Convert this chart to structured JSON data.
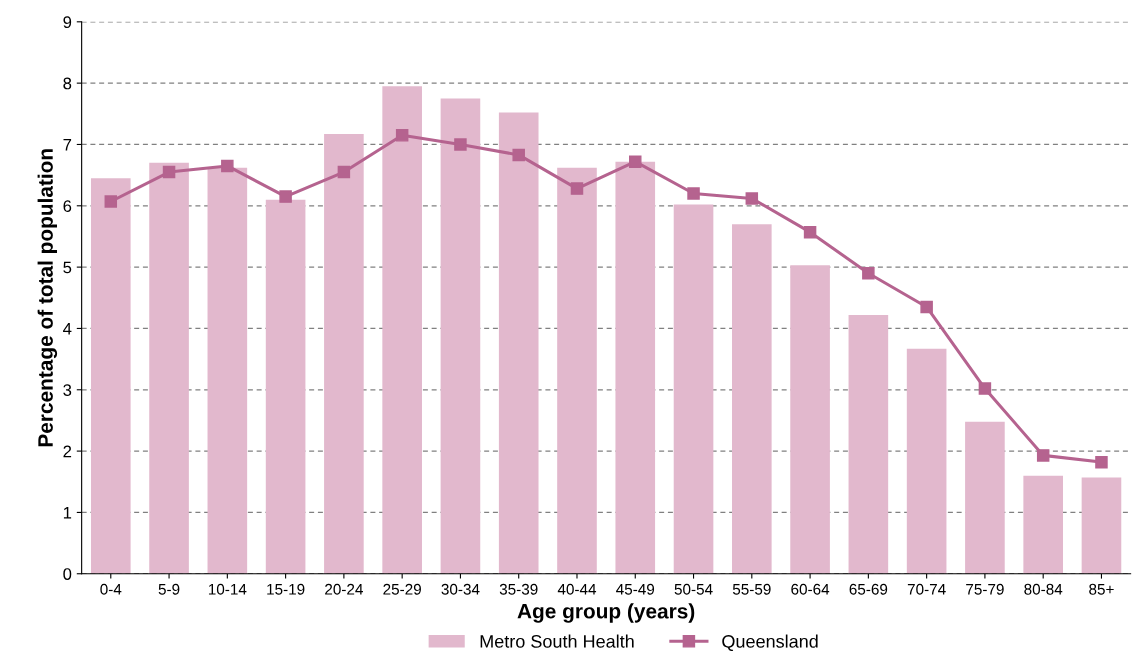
{
  "chart_data": {
    "type": "bar",
    "xlabel": "Age group (years)",
    "ylabel": "Percentage of total population",
    "categories": [
      "0-4",
      "5-9",
      "10-14",
      "15-19",
      "20-24",
      "25-29",
      "30-34",
      "35-39",
      "40-44",
      "45-49",
      "50-54",
      "55-59",
      "60-64",
      "65-69",
      "70-74",
      "75-79",
      "80-84",
      "85+"
    ],
    "series": [
      {
        "name": "Metro South Health",
        "color": "#e2b8cd",
        "values": [
          6.45,
          6.7,
          6.62,
          6.1,
          7.17,
          7.95,
          7.75,
          7.52,
          6.62,
          6.72,
          6.02,
          5.7,
          5.03,
          4.22,
          3.67,
          2.48,
          1.6,
          1.57
        ]
      },
      {
        "name": "Queensland",
        "type": "line",
        "color": "#b5638f",
        "marker": "square",
        "values": [
          6.07,
          6.55,
          6.65,
          6.15,
          6.55,
          7.15,
          7.0,
          6.83,
          6.28,
          6.72,
          6.2,
          6.12,
          5.57,
          4.9,
          4.35,
          3.02,
          1.93,
          1.82
        ]
      }
    ],
    "ylim": [
      0,
      9
    ],
    "yticks": [
      0,
      1,
      2,
      3,
      4,
      5,
      6,
      7,
      8,
      9
    ],
    "grid": "y",
    "legend": "bottom"
  }
}
